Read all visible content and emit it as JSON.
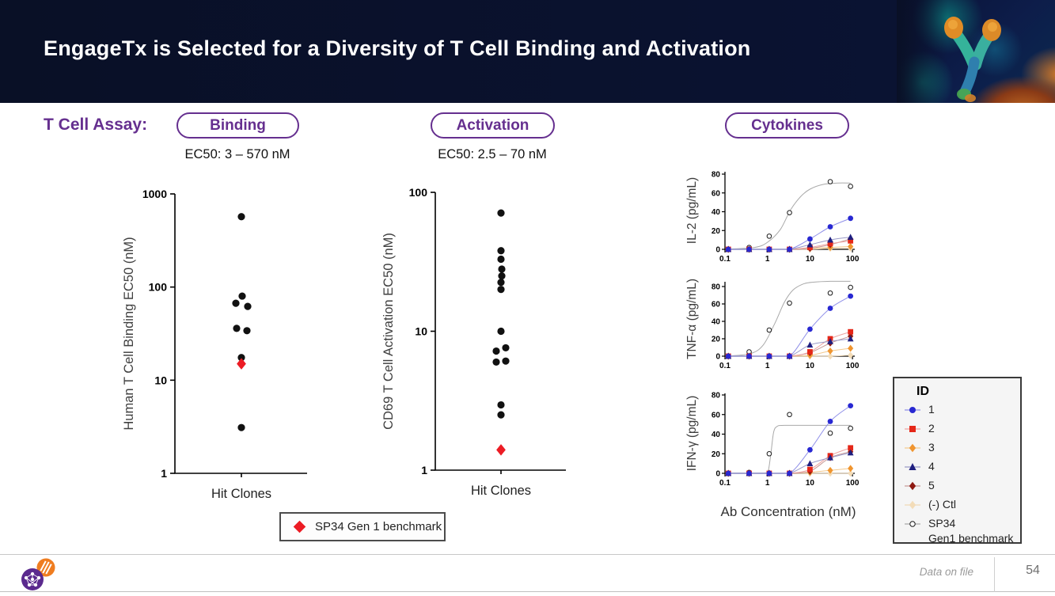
{
  "header": {
    "title": "EngageTx is Selected for a Diversity of T Cell Binding and Activation"
  },
  "assay": {
    "label": "T Cell Assay:",
    "pills": [
      {
        "label": "Binding"
      },
      {
        "label": "Activation"
      },
      {
        "label": "Cytokines"
      }
    ]
  },
  "ec50": {
    "binding": "EC50: 3 – 570 nM",
    "activation": "EC50: 2.5 – 70 nM"
  },
  "benchmark_box": {
    "label": "SP34 Gen 1 benchmark"
  },
  "cytokine_xlabel": "Ab Concentration (nM)",
  "legend": {
    "title": "ID",
    "items": [
      {
        "ref": "1",
        "label": "1"
      },
      {
        "ref": "2",
        "label": "2"
      },
      {
        "ref": "3",
        "label": "3"
      },
      {
        "ref": "4",
        "label": "4"
      },
      {
        "ref": "5",
        "label": "5"
      },
      {
        "ref": "ctl",
        "label": "(-) Ctl"
      },
      {
        "ref": "sp34",
        "label": "SP34\nGen1 benchmark"
      }
    ]
  },
  "footer": {
    "source": "Data on file",
    "page": "54"
  },
  "colors": {
    "header_bg": "#091026",
    "purple": "#652f8f",
    "benchmark_red": "#ec1c24",
    "dot": "#111111"
  },
  "series_styles": {
    "1": {
      "marker": "circle",
      "color": "#2828d2",
      "line": "#8f8fe8"
    },
    "2": {
      "marker": "square",
      "color": "#e52718",
      "line": "#eda3a0"
    },
    "3": {
      "marker": "diamond",
      "color": "#f0952f",
      "line": "#f3c98e"
    },
    "4": {
      "marker": "triangle",
      "color": "#1f1f80",
      "line": "#9a9ac8"
    },
    "5": {
      "marker": "diamond",
      "color": "#8f1a12",
      "line": "#c89a96"
    },
    "ctl": {
      "marker": "diamond",
      "color": "#f3dcb8",
      "line": "#efd9b8"
    },
    "sp34": {
      "marker": "open-circle",
      "color": "#1a1a1a",
      "line": "#a9a9a9"
    }
  },
  "chart_data": [
    {
      "id": "binding",
      "type": "scatter",
      "ylabel": "Human T Cell Binding EC50 (nM)",
      "xlabel": "Hit Clones",
      "yscale": "log",
      "ylim": [
        1,
        1000
      ],
      "yticks": [
        1000,
        100,
        10,
        1
      ],
      "points": [
        {
          "value": 570,
          "dx": 0
        },
        {
          "value": 80,
          "dx": 1
        },
        {
          "value": 67,
          "dx": -7
        },
        {
          "value": 62,
          "dx": 8
        },
        {
          "value": 36,
          "dx": -6
        },
        {
          "value": 34,
          "dx": 7
        },
        {
          "value": 17.5,
          "dx": 0
        },
        {
          "value": 3.1,
          "dx": 0
        }
      ],
      "benchmark": {
        "value": 15,
        "dx": 0,
        "label": "SP34 Gen 1 benchmark"
      }
    },
    {
      "id": "activation",
      "type": "scatter",
      "ylabel": "CD69 T Cell Activation EC50 (nM)",
      "xlabel": "Hit Clones",
      "yscale": "log",
      "ylim": [
        1,
        100
      ],
      "yticks": [
        100,
        10,
        1
      ],
      "points": [
        {
          "value": 71,
          "dx": 0
        },
        {
          "value": 38,
          "dx": 0
        },
        {
          "value": 33,
          "dx": 0
        },
        {
          "value": 28,
          "dx": 1
        },
        {
          "value": 25,
          "dx": 1
        },
        {
          "value": 22.5,
          "dx": 0
        },
        {
          "value": 20,
          "dx": 0
        },
        {
          "value": 10,
          "dx": 0
        },
        {
          "value": 7.6,
          "dx": 6
        },
        {
          "value": 7.2,
          "dx": -6
        },
        {
          "value": 6.1,
          "dx": 6
        },
        {
          "value": 6,
          "dx": -6
        },
        {
          "value": 2.95,
          "dx": 0
        },
        {
          "value": 2.5,
          "dx": 0
        }
      ],
      "benchmark": {
        "value": 1.4,
        "dx": 0,
        "label": "SP34 Gen 1 benchmark"
      }
    },
    {
      "id": "il2",
      "type": "line",
      "ylabel": "IL-2 (pg/mL)",
      "ylim": [
        0,
        80
      ],
      "yticks": [
        0,
        20,
        40,
        60,
        80
      ],
      "xscale": "log",
      "xlim": [
        0.1,
        100
      ],
      "xticks": [
        0.1,
        1,
        10,
        100
      ],
      "series": [
        {
          "ref": "sp34",
          "points": [
            [
              0.12,
              0
            ],
            [
              0.37,
              2
            ],
            [
              1.1,
              14
            ],
            [
              3.3,
              39
            ],
            [
              30,
              72
            ],
            [
              90,
              67
            ]
          ],
          "fit": [
            [
              0.12,
              0.3
            ],
            [
              0.5,
              2
            ],
            [
              1,
              7.5
            ],
            [
              2,
              21
            ],
            [
              3.5,
              42
            ],
            [
              6,
              56
            ],
            [
              10,
              64
            ],
            [
              20,
              69
            ],
            [
              45,
              70.5
            ],
            [
              90,
              70.5
            ]
          ]
        },
        {
          "ref": "ctl",
          "points": [
            [
              0.12,
              0
            ],
            [
              0.37,
              0
            ],
            [
              1.1,
              0
            ],
            [
              3.3,
              0
            ],
            [
              10,
              0
            ],
            [
              30,
              1
            ],
            [
              90,
              1
            ]
          ]
        },
        {
          "ref": "3",
          "points": [
            [
              0.12,
              0
            ],
            [
              0.37,
              0
            ],
            [
              1.1,
              0
            ],
            [
              3.3,
              0
            ],
            [
              10,
              1
            ],
            [
              30,
              2
            ],
            [
              90,
              3
            ]
          ]
        },
        {
          "ref": "5",
          "points": [
            [
              0.12,
              0
            ],
            [
              0.37,
              0
            ],
            [
              1.1,
              0
            ],
            [
              3.3,
              0
            ],
            [
              10,
              1
            ],
            [
              30,
              5
            ],
            [
              90,
              11
            ]
          ]
        },
        {
          "ref": "2",
          "points": [
            [
              0.12,
              0
            ],
            [
              0.37,
              0
            ],
            [
              1.1,
              0
            ],
            [
              3.3,
              0
            ],
            [
              10,
              2
            ],
            [
              30,
              6
            ],
            [
              90,
              9
            ]
          ]
        },
        {
          "ref": "4",
          "points": [
            [
              0.12,
              0
            ],
            [
              0.37,
              0
            ],
            [
              1.1,
              0
            ],
            [
              3.3,
              0
            ],
            [
              10,
              5
            ],
            [
              30,
              10
            ],
            [
              90,
              13
            ]
          ]
        },
        {
          "ref": "1",
          "points": [
            [
              0.12,
              0
            ],
            [
              0.37,
              0
            ],
            [
              1.1,
              0
            ],
            [
              3.3,
              0
            ],
            [
              10,
              11
            ],
            [
              30,
              24
            ],
            [
              90,
              33
            ]
          ]
        }
      ]
    },
    {
      "id": "tnfa",
      "type": "line",
      "ylabel": "TNF-α (pg/mL)",
      "ylim": [
        0,
        80
      ],
      "yticks": [
        0,
        20,
        40,
        60,
        80
      ],
      "xscale": "log",
      "xlim": [
        0.1,
        100
      ],
      "xticks": [
        0.1,
        1,
        10,
        100
      ],
      "series": [
        {
          "ref": "sp34",
          "points": [
            [
              0.12,
              0
            ],
            [
              0.37,
              5
            ],
            [
              1.1,
              30
            ],
            [
              3.3,
              61
            ],
            [
              30,
              72.5
            ],
            [
              90,
              79
            ]
          ],
          "fit": [
            [
              0.12,
              0.3
            ],
            [
              0.4,
              3
            ],
            [
              0.8,
              13
            ],
            [
              1.5,
              38
            ],
            [
              2.5,
              62
            ],
            [
              4,
              76
            ],
            [
              7,
              83
            ],
            [
              12,
              85
            ],
            [
              30,
              86
            ],
            [
              90,
              86
            ]
          ]
        },
        {
          "ref": "ctl",
          "points": [
            [
              0.12,
              0
            ],
            [
              0.37,
              0
            ],
            [
              1.1,
              0
            ],
            [
              3.3,
              0
            ],
            [
              10,
              0
            ],
            [
              30,
              0
            ],
            [
              90,
              1
            ]
          ]
        },
        {
          "ref": "3",
          "points": [
            [
              0.12,
              0
            ],
            [
              0.37,
              0
            ],
            [
              1.1,
              0
            ],
            [
              3.3,
              0
            ],
            [
              10,
              1
            ],
            [
              30,
              6
            ],
            [
              90,
              9
            ]
          ]
        },
        {
          "ref": "5",
          "points": [
            [
              0.12,
              0
            ],
            [
              0.37,
              0
            ],
            [
              1.1,
              0
            ],
            [
              3.3,
              0
            ],
            [
              10,
              4
            ],
            [
              30,
              15
            ],
            [
              90,
              23
            ]
          ]
        },
        {
          "ref": "2",
          "points": [
            [
              0.12,
              0
            ],
            [
              0.37,
              0
            ],
            [
              1.1,
              0
            ],
            [
              3.3,
              0
            ],
            [
              10,
              5
            ],
            [
              30,
              20
            ],
            [
              90,
              28
            ]
          ]
        },
        {
          "ref": "4",
          "points": [
            [
              0.12,
              0
            ],
            [
              0.37,
              0
            ],
            [
              1.1,
              0
            ],
            [
              3.3,
              0
            ],
            [
              10,
              13
            ],
            [
              30,
              17
            ],
            [
              90,
              20
            ]
          ]
        },
        {
          "ref": "1",
          "points": [
            [
              0.12,
              0
            ],
            [
              0.37,
              0
            ],
            [
              1.1,
              0
            ],
            [
              3.3,
              0
            ],
            [
              10,
              31
            ],
            [
              30,
              55
            ],
            [
              90,
              69
            ]
          ]
        }
      ]
    },
    {
      "id": "ifng",
      "type": "line",
      "ylabel": "IFN-γ (pg/mL)",
      "ylim": [
        0,
        80
      ],
      "yticks": [
        0,
        20,
        40,
        60,
        80
      ],
      "xscale": "log",
      "xlim": [
        0.1,
        100
      ],
      "xticks": [
        0.1,
        1,
        10,
        100
      ],
      "series": [
        {
          "ref": "sp34",
          "points": [
            [
              0.12,
              0
            ],
            [
              0.37,
              1
            ],
            [
              1.1,
              20
            ],
            [
              3.3,
              60
            ],
            [
              30,
              41
            ],
            [
              90,
              46
            ]
          ],
          "fit": [
            [
              0.12,
              0.3
            ],
            [
              0.9,
              0.5
            ],
            [
              1.05,
              3
            ],
            [
              1.2,
              20
            ],
            [
              1.4,
              42
            ],
            [
              1.7,
              48
            ],
            [
              2.5,
              49
            ],
            [
              10,
              49
            ],
            [
              90,
              49
            ]
          ]
        },
        {
          "ref": "ctl",
          "points": [
            [
              0.12,
              0
            ],
            [
              0.37,
              0
            ],
            [
              1.1,
              0
            ],
            [
              3.3,
              0
            ],
            [
              10,
              0
            ],
            [
              30,
              0
            ],
            [
              90,
              0
            ]
          ]
        },
        {
          "ref": "3",
          "points": [
            [
              0.12,
              0
            ],
            [
              0.37,
              0
            ],
            [
              1.1,
              0
            ],
            [
              3.3,
              0
            ],
            [
              10,
              1
            ],
            [
              30,
              3
            ],
            [
              90,
              5
            ]
          ]
        },
        {
          "ref": "5",
          "points": [
            [
              0.12,
              0
            ],
            [
              0.37,
              0
            ],
            [
              1.1,
              0
            ],
            [
              3.3,
              0
            ],
            [
              10,
              2
            ],
            [
              30,
              16
            ],
            [
              90,
              22
            ]
          ]
        },
        {
          "ref": "2",
          "points": [
            [
              0.12,
              0
            ],
            [
              0.37,
              0
            ],
            [
              1.1,
              0
            ],
            [
              3.3,
              0
            ],
            [
              10,
              4
            ],
            [
              30,
              18
            ],
            [
              90,
              26
            ]
          ]
        },
        {
          "ref": "4",
          "points": [
            [
              0.12,
              0
            ],
            [
              0.37,
              0
            ],
            [
              1.1,
              0
            ],
            [
              3.3,
              0
            ],
            [
              10,
              10
            ],
            [
              30,
              16
            ],
            [
              90,
              21
            ]
          ]
        },
        {
          "ref": "1",
          "points": [
            [
              0.12,
              0
            ],
            [
              0.37,
              0
            ],
            [
              1.1,
              0
            ],
            [
              3.3,
              0
            ],
            [
              10,
              24
            ],
            [
              30,
              53
            ],
            [
              90,
              69
            ]
          ]
        }
      ]
    }
  ]
}
